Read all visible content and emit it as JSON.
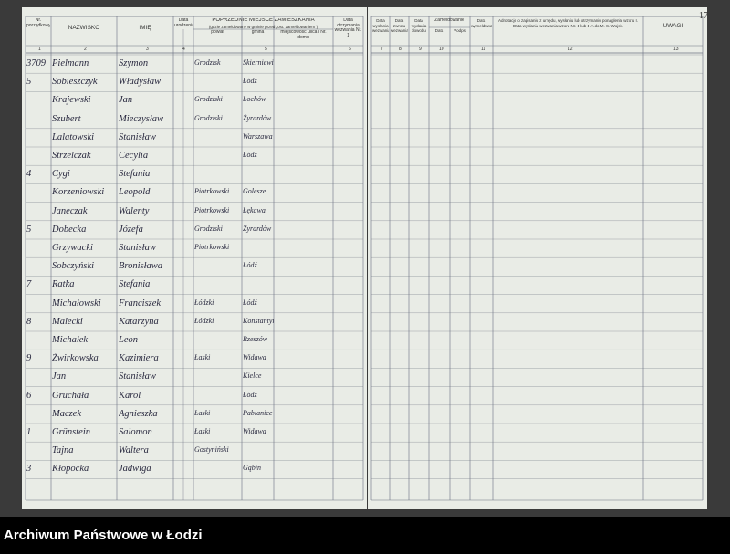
{
  "page_number": "17",
  "footer": "Archiwum Państwowe w Łodzi",
  "left_headers": [
    "Nr. porządkowy",
    "NAZWISKO",
    "IMIĘ",
    "Data urodzenia",
    "powiat",
    "gmina",
    "miejscowość ulica i Nr. domu",
    "Data otrzymania wezwania Nr. 1"
  ],
  "left_group": {
    "title": "POPRZEDNIE MIEJSCE ZAMIESZKANIA",
    "subtitle": "(gdzie zameldowany w gminie przed „ost. zameldowaniem”)"
  },
  "right_headers": [
    "Data wysłania wezwania",
    "Data zwrotu wezwania",
    "Data wydania dowodu",
    "Data",
    "Podpis",
    "Data wymeldowania",
    "Adnotacje o zapisaniu z urzędu, wysłaniu lub otrzymaniu ponaglenia wzoru I. Data wysłania wezwania wzoru Nr. 1 lub 1-A do M. S. Wojsk.",
    "UWAGI"
  ],
  "right_group": "Zameldowanie",
  "left_column_numbers": [
    "1",
    "2",
    "3",
    "4",
    "5",
    "6"
  ],
  "right_column_numbers": [
    "7",
    "8",
    "9",
    "10",
    "11",
    "12",
    "13"
  ],
  "rows": [
    {
      "number": "3709",
      "surname": "Pielmann",
      "name": "Szymon",
      "powiat": "Grodzisk",
      "gmina": "Skierniewice"
    },
    {
      "number": "5",
      "surname": "Sobieszczyk",
      "name": "Władysław",
      "gmina": "Łódź"
    },
    {
      "surname": "Krajewski",
      "name": "Jan",
      "powiat": "Grodziski",
      "gmina": "Łochów"
    },
    {
      "surname": "Szubert",
      "name": "Mieczysław",
      "powiat": "Grodziski",
      "gmina": "Żyrardów"
    },
    {
      "surname": "Lalatowski",
      "name": "Stanisław",
      "gmina": "Warszawa"
    },
    {
      "surname": "Strzelczak",
      "name": "Cecylia",
      "gmina": "Łódź"
    },
    {
      "number": "4",
      "surname": "Cygi",
      "name": "Stefania"
    },
    {
      "surname": "Korzeniowski",
      "name": "Leopold",
      "powiat": "Piotrkowski",
      "gmina": "Golesze"
    },
    {
      "surname": "Janeczak",
      "name": "Walenty",
      "powiat": "Piotrkowski",
      "gmina": "Łękawa"
    },
    {
      "number": "5",
      "surname": "Dobecka",
      "name": "Józefa",
      "powiat": "Grodziski",
      "gmina": "Żyrardów"
    },
    {
      "surname": "Grzywacki",
      "name": "Stanisław",
      "powiat": "Piotrkowski"
    },
    {
      "surname": "Sobczyński",
      "name": "Bronisława",
      "gmina": "Łódź"
    },
    {
      "number": "7",
      "surname": "Ratka",
      "name": "Stefania"
    },
    {
      "surname": "Michałowski",
      "name": "Franciszek",
      "powiat": "Łódzki",
      "gmina": "Łódź"
    },
    {
      "number": "8",
      "surname": "Malecki",
      "name": "Katarzyna",
      "powiat": "Łódzki",
      "gmina": "Konstantynów"
    },
    {
      "surname": "Michałek",
      "name": "Leon",
      "gmina": "Rzeszów"
    },
    {
      "number": "9",
      "surname": "Żwirkowska",
      "name": "Kazimiera",
      "powiat": "Łaski",
      "gmina": "Widawa"
    },
    {
      "surname": "Jan",
      "name": "Stanisław",
      "gmina": "Kielce"
    },
    {
      "number": "6",
      "surname": "Gruchała",
      "name": "Karol",
      "gmina": "Łódź"
    },
    {
      "surname": "Maczek",
      "name": "Agnieszka",
      "powiat": "Łaski",
      "gmina": "Pabianice"
    },
    {
      "number": "1",
      "surname": "Grünstein",
      "name": "Salomon",
      "powiat": "Łaski",
      "gmina": "Widawa"
    },
    {
      "surname": "Tajna",
      "name": "Waltera",
      "powiat": "Gostyniński"
    },
    {
      "number": "3",
      "surname": "Kłopocka",
      "name": "Jadwiga",
      "gmina": "Gąbin"
    }
  ]
}
